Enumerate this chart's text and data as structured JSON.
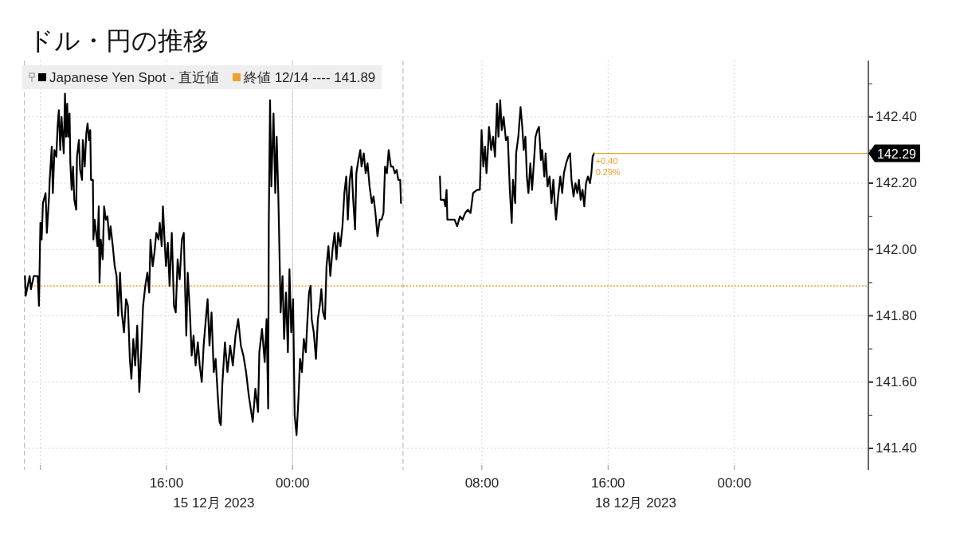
{
  "chart_data": [
    {
      "type": "line",
      "title": "ドル・円の推移",
      "xlabel": "15 12月 2023",
      "x": [
        7.03,
        7.08,
        7.33,
        7.41,
        7.59,
        7.84,
        7.92,
        8.01,
        8.09,
        8.17,
        8.34,
        8.42,
        8.56,
        8.6,
        8.73,
        8.8,
        8.9,
        9.02,
        9.1,
        9.18,
        9.27,
        9.35,
        9.49,
        9.57,
        9.64,
        9.71,
        9.77,
        9.86,
        9.91,
        9.99,
        10.08,
        10.16,
        10.28,
        10.33,
        10.45,
        10.53,
        10.65,
        10.7,
        10.82,
        10.92,
        11.0,
        11.09,
        11.17,
        11.22,
        11.34,
        11.37,
        11.45,
        11.63,
        11.71,
        11.76,
        11.84,
        11.96,
        12.05,
        12.16,
        12.26,
        12.38,
        12.46,
        12.6,
        12.72,
        12.84,
        12.94,
        13.06,
        13.17,
        13.31,
        13.44,
        13.56,
        13.68,
        13.78,
        13.9,
        14.02,
        14.15,
        14.28,
        14.4,
        14.52,
        14.66,
        14.79,
        14.91,
        14.99,
        15.13,
        15.24,
        15.36,
        15.5,
        15.58,
        15.7,
        15.78,
        15.88,
        15.97,
        16.09,
        16.2,
        16.34,
        16.48,
        16.59,
        16.71,
        16.84,
        16.98,
        17.1,
        17.18,
        17.26,
        17.35,
        17.49,
        17.6,
        17.72,
        17.85,
        17.99,
        18.11,
        18.24,
        18.36,
        18.5,
        18.61,
        18.73,
        18.86,
        19.0,
        19.12,
        19.28,
        19.37,
        19.45,
        19.54,
        19.71,
        19.87,
        20.04,
        20.21,
        20.38,
        20.55,
        20.72,
        20.88,
        21.05,
        21.22,
        21.47,
        21.64,
        21.81,
        21.89,
        22.06,
        22.23,
        22.35,
        22.45,
        22.49,
        22.57,
        22.65,
        22.79,
        22.9,
        22.99,
        23.09,
        23.16,
        23.24,
        23.36,
        23.46,
        23.58,
        23.7,
        23.8,
        23.91,
        24.03,
        24.13,
        24.25,
        24.37,
        24.47,
        24.59,
        24.71,
        24.84,
        24.92,
        25.04,
        25.14,
        25.21,
        25.34,
        25.48,
        25.6,
        25.72,
        25.82,
        25.93,
        26.05,
        26.15,
        26.27,
        26.39,
        26.53,
        26.66,
        26.78,
        26.89,
        27.03,
        27.16,
        27.28,
        27.4,
        27.5,
        27.62,
        27.74,
        27.84,
        27.96,
        28.04,
        28.17,
        28.29,
        28.37,
        28.51,
        28.63,
        28.75,
        28.88,
        29.02,
        29.13,
        29.25,
        29.38,
        29.52,
        29.64,
        29.76,
        29.86,
        29.98,
        30.09,
        30.23,
        30.36,
        30.48,
        30.6,
        30.7,
        30.82,
        30.87
      ],
      "series": [
        {
          "name": "Japanese Yen Spot - 直近値",
          "color": "#000000",
          "values": [
            141.92,
            141.86,
            141.92,
            141.88,
            141.92,
            141.92,
            141.83,
            142.08,
            142.03,
            142.14,
            142.17,
            142.05,
            142.16,
            142.21,
            142.31,
            142.17,
            142.3,
            142.28,
            142.37,
            142.42,
            142.3,
            142.4,
            142.29,
            142.47,
            142.34,
            142.44,
            142.34,
            142.41,
            142.26,
            142.18,
            142.25,
            142.15,
            142.12,
            142.28,
            142.33,
            142.24,
            142.21,
            142.33,
            142.25,
            142.35,
            142.38,
            142.33,
            142.36,
            142.21,
            142.21,
            142.03,
            142.09,
            142.01,
            142.13,
            141.9,
            142.03,
            141.97,
            142.13,
            142.09,
            142.1,
            142.03,
            142.07,
            142.01,
            141.95,
            141.92,
            141.8,
            141.93,
            141.81,
            141.75,
            141.85,
            141.83,
            141.67,
            141.61,
            141.73,
            141.65,
            141.77,
            141.57,
            141.69,
            141.83,
            141.89,
            141.93,
            141.87,
            142.03,
            141.95,
            141.99,
            142.05,
            142.03,
            142.08,
            142.01,
            142.13,
            142.03,
            141.95,
            142.02,
            141.89,
            142.05,
            141.83,
            141.81,
            141.97,
            141.91,
            142.03,
            142.05,
            141.89,
            141.74,
            141.93,
            141.81,
            141.68,
            141.74,
            141.65,
            141.72,
            141.65,
            141.6,
            141.71,
            141.79,
            141.85,
            141.71,
            141.81,
            141.63,
            141.67,
            141.54,
            141.48,
            141.47,
            141.59,
            141.72,
            141.63,
            141.71,
            141.65,
            141.74,
            141.79,
            141.71,
            141.68,
            141.63,
            141.56,
            141.48,
            141.58,
            141.51,
            141.69,
            141.76,
            141.66,
            141.79,
            141.52,
            142.08,
            142.45,
            142.19,
            142.41,
            142.17,
            142.34,
            142.17,
            142.01,
            141.81,
            141.92,
            141.73,
            141.87,
            141.69,
            141.94,
            141.75,
            141.85,
            141.5,
            141.44,
            141.55,
            141.67,
            141.63,
            141.73,
            141.69,
            141.77,
            141.87,
            141.89,
            141.79,
            141.75,
            141.67,
            141.79,
            141.83,
            141.88,
            141.81,
            141.79,
            141.95,
            142.01,
            141.92,
            142.0,
            142.05,
            141.97,
            142.05,
            142.01,
            142.07,
            142.17,
            142.22,
            142.09,
            142.21,
            142.25,
            142.15,
            142.06,
            142.23,
            142.27,
            142.3,
            142.25,
            142.29,
            142.23,
            142.26,
            142.19,
            142.14,
            142.16,
            142.11,
            142.04,
            142.09,
            142.09,
            142.11,
            142.25,
            142.23,
            142.3,
            142.25,
            142.25,
            142.23,
            142.24,
            142.21,
            142.21,
            142.14
          ]
        }
      ],
      "xlim": [
        7,
        31
      ],
      "xticks": [
        {
          "value": 8,
          "label": null
        },
        {
          "value": 16,
          "label": "16:00"
        },
        {
          "value": 24,
          "label": "00:00"
        }
      ],
      "ylim": [
        141.335,
        142.57
      ],
      "yticks": [
        141.4,
        141.6,
        141.8,
        142.0,
        142.2,
        142.4
      ],
      "tick_labels": "x",
      "grid": true,
      "legend": "top left",
      "ref_lines": [
        {
          "axis": "y",
          "value": 141.89,
          "label": "終値 12/14 ---- 141.89",
          "color": "#f0a030",
          "line_style": "dotted"
        },
        {
          "axis": "x",
          "value": 7,
          "color": "#b0b0b0",
          "line_style": "dashed"
        },
        {
          "axis": "x",
          "value": 24,
          "color": "#cccccc",
          "line_style": "solid"
        },
        {
          "axis": "x",
          "value": 31,
          "color": "#b0b0b0",
          "line_style": "dashed"
        }
      ]
    },
    {
      "type": "line",
      "xlabel": "18 12月 2023",
      "x": [
        5.34,
        5.39,
        5.6,
        5.68,
        5.76,
        5.81,
        5.93,
        6.1,
        6.27,
        6.43,
        6.61,
        6.77,
        6.94,
        7.11,
        7.28,
        7.44,
        7.7,
        7.87,
        7.98,
        8.09,
        8.2,
        8.29,
        8.37,
        8.45,
        8.59,
        8.71,
        8.83,
        8.96,
        9.05,
        9.16,
        9.26,
        9.38,
        9.52,
        9.64,
        9.77,
        9.89,
        9.97,
        10.11,
        10.17,
        10.31,
        10.45,
        10.56,
        10.65,
        10.76,
        10.85,
        10.95,
        11.07,
        11.18,
        11.28,
        11.4,
        11.52,
        11.62,
        11.74,
        11.82,
        11.96,
        12.04,
        12.16,
        12.29,
        12.41,
        12.53,
        12.63,
        12.7,
        12.83,
        12.97,
        13.09,
        13.2,
        13.34,
        13.48,
        13.59,
        13.68,
        13.81,
        13.93,
        14.05,
        14.15,
        14.26,
        14.38,
        14.49,
        14.6,
        14.72,
        14.85,
        14.94,
        15.02,
        15.11
      ],
      "series": [
        {
          "color": "#000000",
          "values": [
            142.22,
            142.15,
            142.15,
            142.13,
            142.18,
            142.09,
            142.09,
            142.09,
            142.09,
            142.07,
            142.1,
            142.09,
            142.11,
            142.12,
            142.11,
            142.17,
            142.18,
            142.18,
            142.36,
            142.25,
            142.31,
            142.23,
            142.29,
            142.37,
            142.3,
            142.34,
            142.28,
            142.44,
            142.34,
            142.45,
            142.36,
            142.4,
            142.33,
            142.34,
            142.18,
            142.08,
            142.21,
            142.14,
            142.29,
            142.34,
            142.43,
            142.37,
            142.3,
            142.34,
            142.22,
            142.17,
            142.26,
            142.18,
            142.25,
            142.34,
            142.36,
            142.37,
            142.27,
            142.3,
            142.22,
            142.29,
            142.19,
            142.22,
            142.14,
            142.21,
            142.13,
            142.09,
            142.16,
            142.22,
            142.17,
            142.23,
            142.26,
            142.28,
            142.29,
            142.21,
            142.16,
            142.2,
            142.17,
            142.21,
            142.15,
            142.18,
            142.13,
            142.2,
            142.22,
            142.2,
            142.23,
            142.28,
            142.29
          ]
        },
        {
          "color": "#f0a030",
          "x": [
            15.11,
            32.5
          ],
          "values": [
            142.29,
            142.29
          ],
          "value_labels": [
            null,
            "142.29"
          ]
        }
      ],
      "xlim": [
        3,
        32.5
      ],
      "xticks": [
        {
          "value": 8,
          "label": "08:00"
        },
        {
          "value": 16,
          "label": "16:00"
        },
        {
          "value": 24,
          "label": "00:00"
        }
      ],
      "ylim": [
        141.335,
        142.57
      ],
      "yticks": [
        {
          "value": 141.4,
          "label": "141.40"
        },
        {
          "value": 141.5,
          "label": null
        },
        {
          "value": 141.6,
          "label": "141.60"
        },
        {
          "value": 141.7,
          "label": null
        },
        {
          "value": 141.8,
          "label": "141.80"
        },
        {
          "value": 141.9,
          "label": null
        },
        {
          "value": 142.0,
          "label": "142.00"
        },
        {
          "value": 142.1,
          "label": null
        },
        {
          "value": 142.2,
          "label": "142.20"
        },
        {
          "value": 142.3,
          "label": null
        },
        {
          "value": 142.4,
          "label": "142.40"
        },
        {
          "value": 142.5,
          "label": null
        }
      ],
      "grid": true,
      "ref_lines": [
        {
          "axis": "y",
          "value": 141.89,
          "color": "#f0a030",
          "line_style": "dotted"
        }
      ],
      "annotations": [
        {
          "text": "+0.40",
          "x": 15.11,
          "y": 142.29
        },
        {
          "text": "0.29%",
          "x": 15.11,
          "y": 142.29
        }
      ]
    }
  ]
}
